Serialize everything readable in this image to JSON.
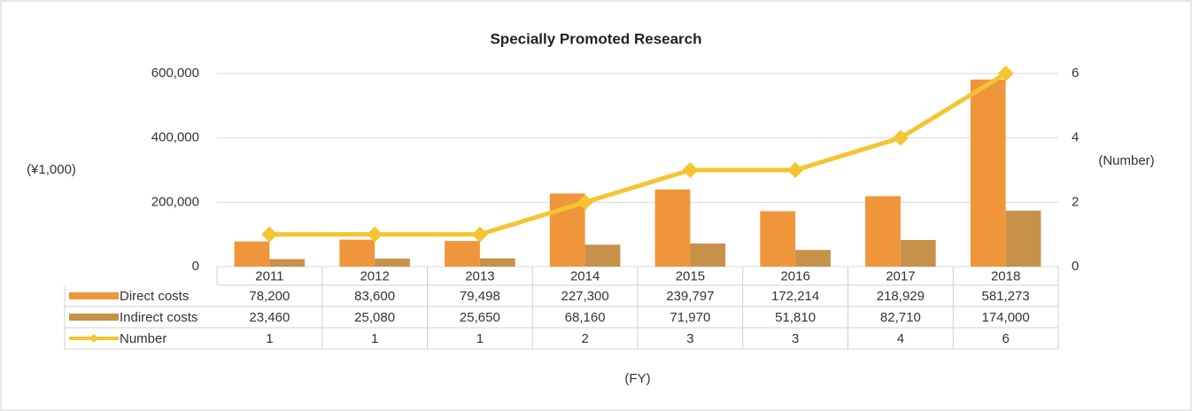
{
  "chart_data": {
    "type": "bar",
    "title": "Specially Promoted Research",
    "categories": [
      "2011",
      "2012",
      "2013",
      "2014",
      "2015",
      "2016",
      "2017",
      "2018"
    ],
    "y_label": "(¥1,000)",
    "y2_label": "(Number)",
    "x_label": "(FY)",
    "ylim": [
      0,
      600000
    ],
    "yticks": [
      0,
      {
        "value": 200000,
        "label": "200,000"
      },
      {
        "value": 400000,
        "label": "400,000"
      },
      {
        "value": 600000,
        "label": "600,000"
      }
    ],
    "y2lim": [
      0,
      6
    ],
    "y2ticks": [
      0,
      2,
      4,
      6
    ],
    "grid": true,
    "series": [
      {
        "name": "Direct costs",
        "type": "bar",
        "color": "#f0963a",
        "values": [
          78200,
          83600,
          79498,
          227300,
          239797,
          172214,
          218929,
          581273
        ],
        "value_labels": [
          "78,200",
          "83,600",
          "79,498",
          "227,300",
          "239,797",
          "172,214",
          "218,929",
          "581,273"
        ]
      },
      {
        "name": "Indirect costs",
        "type": "bar",
        "color": "#c8914a",
        "values": [
          23460,
          25080,
          25650,
          68160,
          71970,
          51810,
          82710,
          174000
        ],
        "value_labels": [
          "23,460",
          "25,080",
          "25,650",
          "68,160",
          "71,970",
          "51,810",
          "82,710",
          "174,000"
        ]
      },
      {
        "name": "Number",
        "type": "line",
        "axis": "y2",
        "color": "#f5c431",
        "values": [
          1,
          1,
          1,
          2,
          3,
          3,
          4,
          6
        ]
      }
    ]
  }
}
